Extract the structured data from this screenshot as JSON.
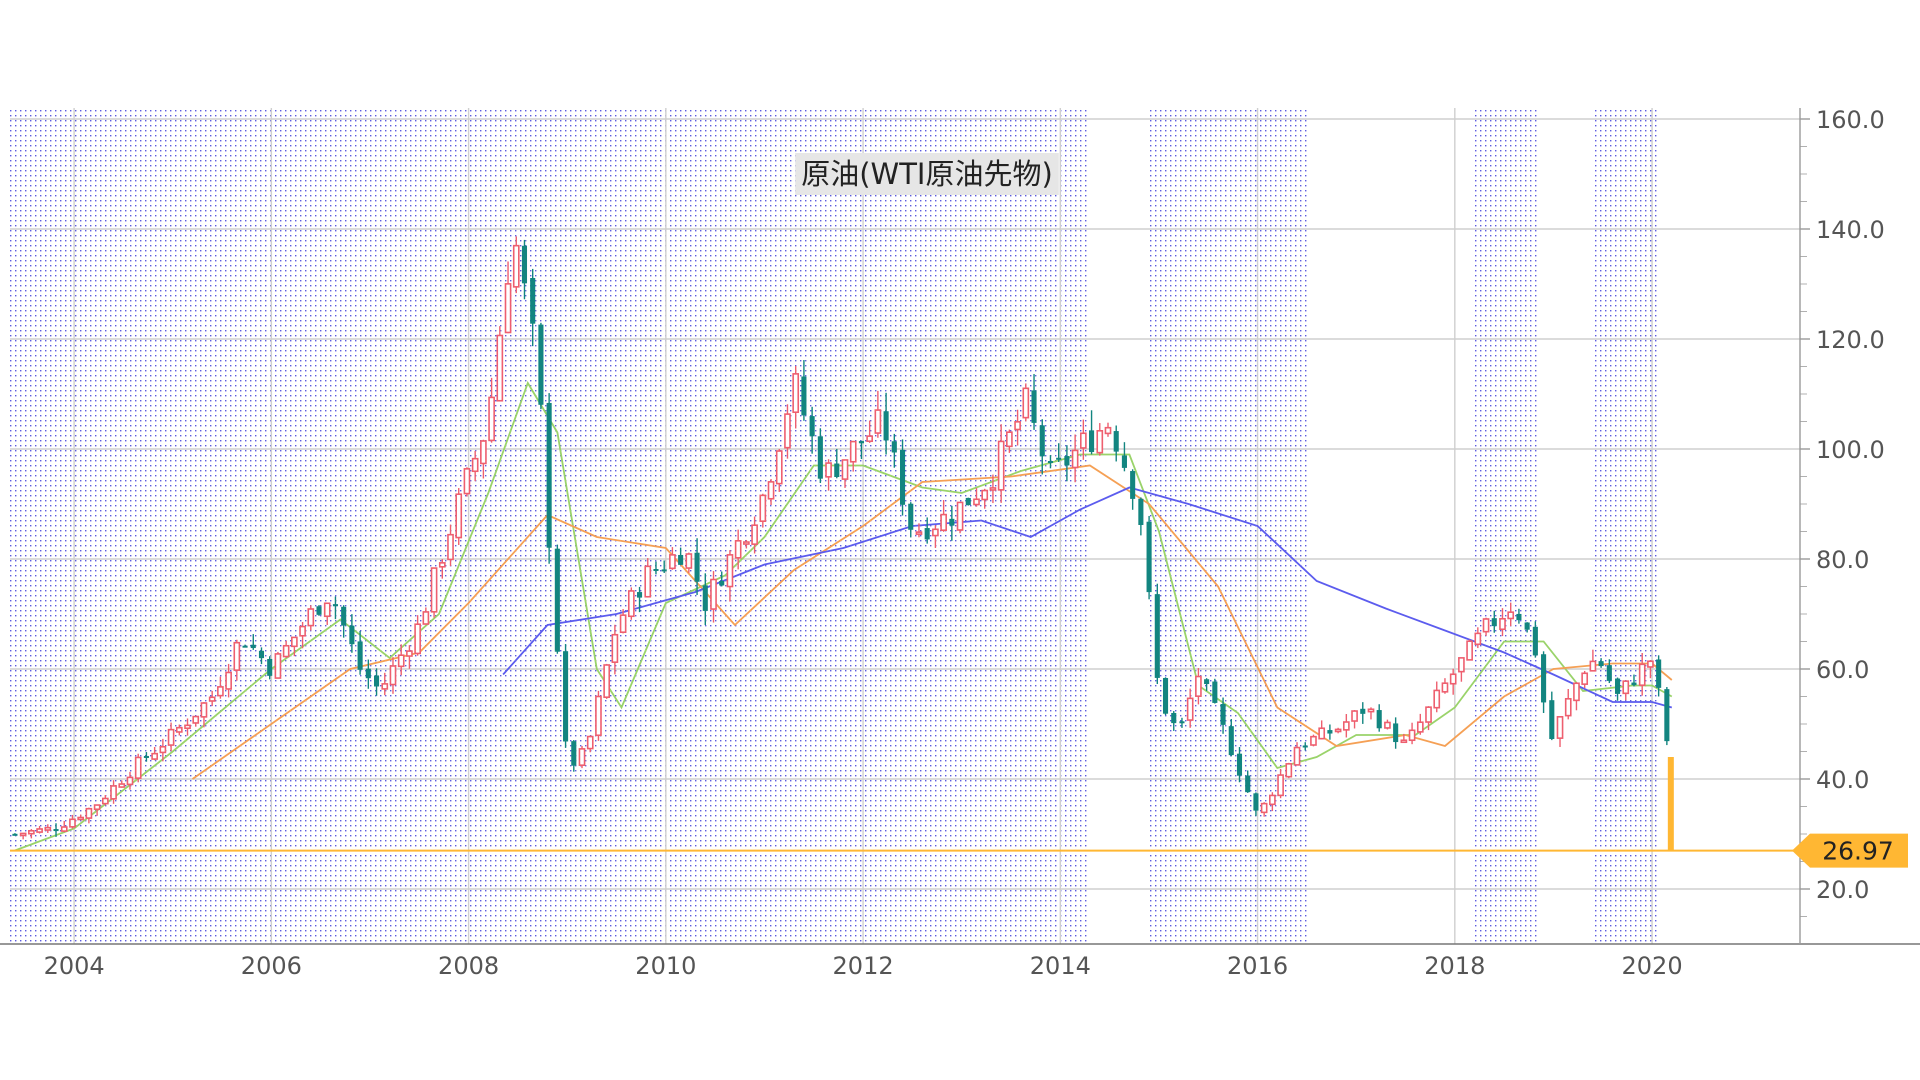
{
  "chart_data": {
    "type": "candlestick",
    "title": "原油(WTI原油先物)",
    "period": "monthly",
    "x_range": [
      2003.35,
      2021.5
    ],
    "ylim": [
      10,
      162
    ],
    "x_ticks": [
      {
        "value": 2004,
        "label": "2004"
      },
      {
        "value": 2006,
        "label": "2006"
      },
      {
        "value": 2008,
        "label": "2008"
      },
      {
        "value": 2010,
        "label": "2010"
      },
      {
        "value": 2012,
        "label": "2012"
      },
      {
        "value": 2014,
        "label": "2014"
      },
      {
        "value": 2016,
        "label": "2016"
      },
      {
        "value": 2018,
        "label": "2018"
      },
      {
        "value": 2020,
        "label": "2020"
      }
    ],
    "y_ticks": [
      {
        "value": 20,
        "label": "20.0"
      },
      {
        "value": 40,
        "label": "40.0"
      },
      {
        "value": 60,
        "label": "60.0"
      },
      {
        "value": 80,
        "label": "80.0"
      },
      {
        "value": 100,
        "label": "100.0"
      },
      {
        "value": 120,
        "label": "120.0"
      },
      {
        "value": 140,
        "label": "140.0"
      },
      {
        "value": 160,
        "label": "160.0"
      }
    ],
    "grid": true,
    "shaded_periods": [
      [
        2003.35,
        2014.3
      ],
      [
        2014.9,
        2016.5
      ],
      [
        2018.2,
        2018.85
      ],
      [
        2019.4,
        2020.05
      ]
    ],
    "price_series": [
      {
        "x": 2003.4,
        "close": 30.0
      },
      {
        "x": 2003.8,
        "close": 31.0
      },
      {
        "x": 2004.2,
        "close": 35.0
      },
      {
        "x": 2004.6,
        "close": 42.0
      },
      {
        "x": 2005.0,
        "close": 48.0
      },
      {
        "x": 2005.4,
        "close": 55.0
      },
      {
        "x": 2005.7,
        "close": 66.0
      },
      {
        "x": 2006.0,
        "close": 60.0
      },
      {
        "x": 2006.4,
        "close": 70.0
      },
      {
        "x": 2006.6,
        "close": 74.0
      },
      {
        "x": 2006.9,
        "close": 60.0
      },
      {
        "x": 2007.1,
        "close": 56.0
      },
      {
        "x": 2007.5,
        "close": 68.0
      },
      {
        "x": 2007.9,
        "close": 90.0
      },
      {
        "x": 2008.2,
        "close": 105.0
      },
      {
        "x": 2008.45,
        "close": 140.0
      },
      {
        "x": 2008.7,
        "close": 115.0
      },
      {
        "x": 2008.85,
        "close": 75.0
      },
      {
        "x": 2009.0,
        "close": 42.0
      },
      {
        "x": 2009.2,
        "close": 45.0
      },
      {
        "x": 2009.5,
        "close": 68.0
      },
      {
        "x": 2009.8,
        "close": 77.0
      },
      {
        "x": 2010.2,
        "close": 82.0
      },
      {
        "x": 2010.4,
        "close": 72.0
      },
      {
        "x": 2010.8,
        "close": 85.0
      },
      {
        "x": 2011.0,
        "close": 92.0
      },
      {
        "x": 2011.3,
        "close": 112.0
      },
      {
        "x": 2011.6,
        "close": 95.0
      },
      {
        "x": 2011.9,
        "close": 100.0
      },
      {
        "x": 2012.2,
        "close": 105.0
      },
      {
        "x": 2012.5,
        "close": 85.0
      },
      {
        "x": 2012.9,
        "close": 88.0
      },
      {
        "x": 2013.3,
        "close": 95.0
      },
      {
        "x": 2013.65,
        "close": 108.0
      },
      {
        "x": 2013.9,
        "close": 95.0
      },
      {
        "x": 2014.3,
        "close": 102.0
      },
      {
        "x": 2014.5,
        "close": 105.0
      },
      {
        "x": 2014.8,
        "close": 90.0
      },
      {
        "x": 2015.0,
        "close": 55.0
      },
      {
        "x": 2015.2,
        "close": 48.0
      },
      {
        "x": 2015.4,
        "close": 59.0
      },
      {
        "x": 2015.7,
        "close": 47.0
      },
      {
        "x": 2016.0,
        "close": 33.0
      },
      {
        "x": 2016.4,
        "close": 46.0
      },
      {
        "x": 2016.8,
        "close": 49.0
      },
      {
        "x": 2017.1,
        "close": 53.0
      },
      {
        "x": 2017.5,
        "close": 46.0
      },
      {
        "x": 2017.9,
        "close": 57.0
      },
      {
        "x": 2018.3,
        "close": 67.0
      },
      {
        "x": 2018.6,
        "close": 72.0
      },
      {
        "x": 2018.85,
        "close": 62.0
      },
      {
        "x": 2018.95,
        "close": 46.0
      },
      {
        "x": 2019.3,
        "close": 60.0
      },
      {
        "x": 2019.45,
        "close": 62.0
      },
      {
        "x": 2019.65,
        "close": 55.0
      },
      {
        "x": 2019.9,
        "close": 60.0
      },
      {
        "x": 2020.0,
        "close": 62.0
      },
      {
        "x": 2020.1,
        "close": 52.0
      },
      {
        "x": 2020.17,
        "close": 45.0
      }
    ],
    "moving_averages": [
      {
        "color": "#9ad36a",
        "points": [
          [
            2003.4,
            27.0
          ],
          [
            2004.0,
            31.0
          ],
          [
            2005.0,
            45.0
          ],
          [
            2006.0,
            60.0
          ],
          [
            2006.7,
            69.0
          ],
          [
            2007.2,
            62.0
          ],
          [
            2007.7,
            70.0
          ],
          [
            2008.2,
            92.0
          ],
          [
            2008.6,
            112.0
          ],
          [
            2008.9,
            103.0
          ],
          [
            2009.3,
            60.0
          ],
          [
            2009.55,
            53.0
          ],
          [
            2010.0,
            72.0
          ],
          [
            2010.6,
            77.0
          ],
          [
            2011.0,
            84.0
          ],
          [
            2011.5,
            97.0
          ],
          [
            2012.0,
            97.0
          ],
          [
            2012.6,
            93.0
          ],
          [
            2013.0,
            92.0
          ],
          [
            2013.6,
            96.0
          ],
          [
            2014.2,
            99.0
          ],
          [
            2014.7,
            99.0
          ],
          [
            2015.0,
            85.0
          ],
          [
            2015.4,
            57.0
          ],
          [
            2015.8,
            52.0
          ],
          [
            2016.2,
            42.0
          ],
          [
            2016.6,
            44.0
          ],
          [
            2017.0,
            48.0
          ],
          [
            2017.6,
            48.0
          ],
          [
            2018.0,
            53.0
          ],
          [
            2018.5,
            65.0
          ],
          [
            2018.9,
            65.0
          ],
          [
            2019.3,
            56.0
          ],
          [
            2019.8,
            57.0
          ],
          [
            2020.0,
            57.0
          ],
          [
            2020.2,
            55.0
          ]
        ]
      },
      {
        "color": "#f5a055",
        "points": [
          [
            2005.2,
            40.0
          ],
          [
            2006.0,
            50.0
          ],
          [
            2006.8,
            60.0
          ],
          [
            2007.5,
            63.0
          ],
          [
            2008.0,
            72.0
          ],
          [
            2008.8,
            88.0
          ],
          [
            2009.3,
            84.0
          ],
          [
            2010.0,
            82.0
          ],
          [
            2010.7,
            68.0
          ],
          [
            2011.3,
            78.0
          ],
          [
            2012.0,
            86.0
          ],
          [
            2012.6,
            94.0
          ],
          [
            2013.5,
            95.0
          ],
          [
            2014.3,
            97.0
          ],
          [
            2014.9,
            90.0
          ],
          [
            2015.6,
            75.0
          ],
          [
            2016.2,
            53.0
          ],
          [
            2016.8,
            46.0
          ],
          [
            2017.5,
            48.0
          ],
          [
            2017.9,
            46.0
          ],
          [
            2018.5,
            55.0
          ],
          [
            2019.0,
            60.0
          ],
          [
            2019.6,
            61.0
          ],
          [
            2020.0,
            61.0
          ],
          [
            2020.2,
            58.0
          ]
        ]
      },
      {
        "color": "#5c5cee",
        "points": [
          [
            2008.35,
            59.0
          ],
          [
            2008.8,
            68.0
          ],
          [
            2009.5,
            70.0
          ],
          [
            2010.3,
            74.0
          ],
          [
            2011.0,
            79.0
          ],
          [
            2011.8,
            82.0
          ],
          [
            2012.5,
            86.0
          ],
          [
            2013.2,
            87.0
          ],
          [
            2013.7,
            84.0
          ],
          [
            2014.2,
            89.0
          ],
          [
            2014.7,
            93.0
          ],
          [
            2015.3,
            90.0
          ],
          [
            2016.0,
            86.0
          ],
          [
            2016.6,
            76.0
          ],
          [
            2017.3,
            71.0
          ],
          [
            2017.9,
            67.0
          ],
          [
            2018.5,
            63.0
          ],
          [
            2019.0,
            59.0
          ],
          [
            2019.6,
            54.0
          ],
          [
            2020.0,
            54.0
          ],
          [
            2020.2,
            53.0
          ]
        ]
      }
    ],
    "support_line": {
      "value": 26.97,
      "color": "#ffb733"
    },
    "last_price": {
      "value": 26.97,
      "label": "26.97",
      "color": "#ffb733"
    },
    "up_color": "#ee5f6f",
    "down_color": "#138580",
    "dots_color": "#5a5ae0"
  }
}
